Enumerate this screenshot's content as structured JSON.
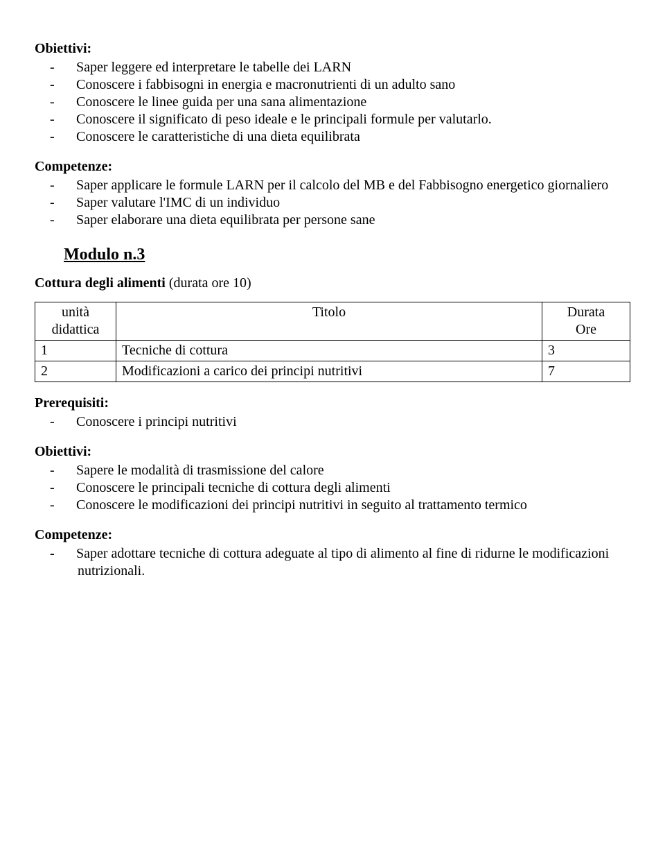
{
  "obiettivi1": {
    "heading": "Obiettivi:",
    "items": [
      "Saper leggere ed interpretare le tabelle dei LARN",
      "Conoscere i fabbisogni in energia e macronutrienti di un adulto sano",
      "Conoscere le linee guida per una sana alimentazione",
      "Conoscere il significato di peso ideale e le principali formule per valutarlo.",
      "Conoscere le caratteristiche di una dieta equilibrata"
    ]
  },
  "competenze1": {
    "heading": "Competenze:",
    "items": [
      "Saper applicare le formule LARN per il calcolo del MB e del Fabbisogno energetico giornaliero",
      "Saper valutare l'IMC di un individuo",
      "Saper elaborare una dieta equilibrata per persone sane"
    ]
  },
  "modulo": {
    "label": "Modulo n.3"
  },
  "subtitle": {
    "bold": "Cottura degli alimenti",
    "rest": "  (durata ore 10)"
  },
  "table": {
    "headers": {
      "c0a": "unità",
      "c0b": "didattica",
      "c1": "Titolo",
      "c2a": "Durata",
      "c2b": "Ore"
    },
    "rows": [
      {
        "n": "1",
        "title": "Tecniche di cottura",
        "ore": "3"
      },
      {
        "n": "2",
        "title": "Modificazioni a carico dei principi nutritivi",
        "ore": "7"
      }
    ]
  },
  "prerequisiti": {
    "heading": "Prerequisiti:",
    "items": [
      "Conoscere i principi nutritivi"
    ]
  },
  "obiettivi2": {
    "heading": "Obiettivi:",
    "items": [
      "Sapere le modalità di trasmissione del calore",
      "Conoscere le principali tecniche di cottura degli alimenti",
      "Conoscere le modificazioni dei principi nutritivi in seguito al trattamento termico"
    ]
  },
  "competenze2": {
    "heading": "Competenze:",
    "items": [
      "Saper adottare tecniche di cottura adeguate al tipo di alimento al fine di ridurne le modificazioni nutrizionali."
    ]
  }
}
